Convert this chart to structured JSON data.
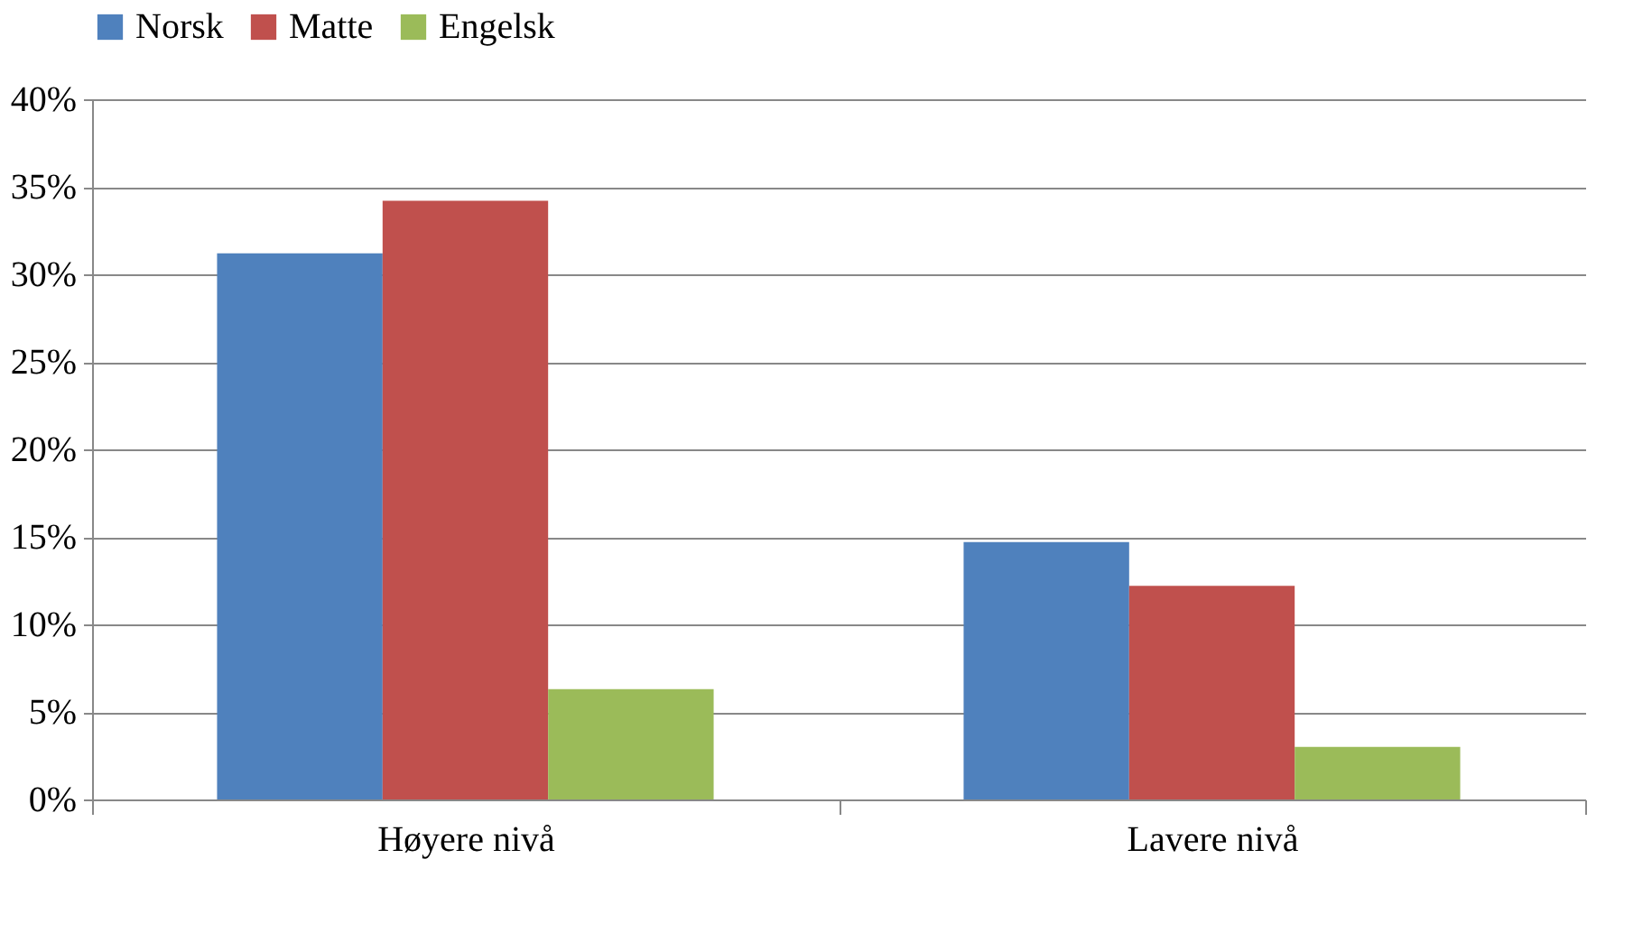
{
  "chart_data": {
    "type": "bar",
    "categories": [
      "Høyere nivå",
      "Lavere nivå"
    ],
    "series": [
      {
        "name": "Norsk",
        "color": "#4f81bd",
        "values": [
          31.2,
          14.7
        ]
      },
      {
        "name": "Matte",
        "color": "#c0504d",
        "values": [
          34.2,
          12.2
        ]
      },
      {
        "name": "Engelsk",
        "color": "#9bbb59",
        "values": [
          6.3,
          3.0
        ]
      }
    ],
    "ylim": [
      0,
      40
    ],
    "yticks": [
      {
        "value": 0,
        "label": "0%"
      },
      {
        "value": 5,
        "label": "5%"
      },
      {
        "value": 10,
        "label": "10%"
      },
      {
        "value": 15,
        "label": "15%"
      },
      {
        "value": 20,
        "label": "20%"
      },
      {
        "value": 25,
        "label": "25%"
      },
      {
        "value": 30,
        "label": "30%"
      },
      {
        "value": 35,
        "label": "35%"
      },
      {
        "value": 40,
        "label": "40%"
      }
    ],
    "grid": "y",
    "legend": "top"
  }
}
